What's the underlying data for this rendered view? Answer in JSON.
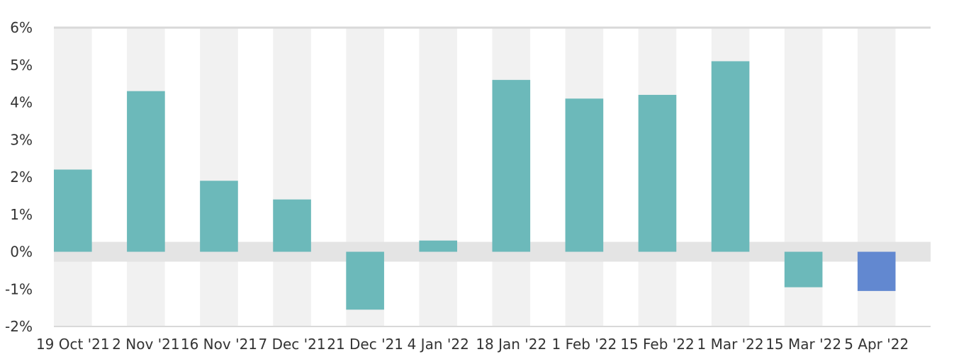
{
  "chart_data": {
    "type": "bar",
    "title": "",
    "xlabel": "",
    "ylabel": "",
    "ylim": [
      -2,
      6
    ],
    "yticks": [
      6,
      5,
      4,
      3,
      2,
      1,
      0,
      -1,
      -2
    ],
    "ytick_labels": [
      "6%",
      "5%",
      "4%",
      "3%",
      "2%",
      "1%",
      "0%",
      "-1%",
      "-2%"
    ],
    "categories": [
      "19 Oct '21",
      "2 Nov '21",
      "16 Nov '21",
      "7 Dec '21",
      "21 Dec '21",
      "4 Jan '22",
      "18 Jan '22",
      "1 Feb '22",
      "15 Feb '22",
      "1 Mar '22",
      "15 Mar '22",
      "5 Apr '22"
    ],
    "values": [
      2.2,
      4.3,
      1.9,
      1.4,
      -1.55,
      0.3,
      4.6,
      4.1,
      4.2,
      5.1,
      -0.95,
      -1.05
    ],
    "colors": {
      "default_bar": "#6cb9ba",
      "highlight_bar": "#6288d0",
      "stripe": "#f1f1f1",
      "zero_band": "#e4e4e4",
      "axis": "#d9d9d9",
      "text": "#333333"
    },
    "highlight_index": 11,
    "grid": false,
    "legend": "none"
  }
}
